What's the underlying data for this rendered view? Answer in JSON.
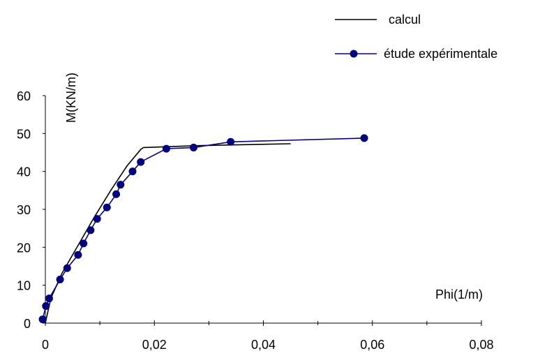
{
  "chart_data": {
    "type": "line",
    "xlabel": "Phi(1/m)",
    "ylabel": "M(KN/m)",
    "xlim": [
      0,
      0.08
    ],
    "ylim": [
      0,
      60
    ],
    "x_ticks": [
      "0",
      "0,02",
      "0,04",
      "0,06",
      "0,08"
    ],
    "y_ticks": [
      "0",
      "10",
      "20",
      "30",
      "40",
      "50",
      "60"
    ],
    "grid": false,
    "legend_position": "top-right",
    "series": [
      {
        "name": "calcul",
        "color": "#000000",
        "marker": "none",
        "x": [
          0,
          0.001,
          0.003,
          0.006,
          0.009,
          0.012,
          0.015,
          0.0175,
          0.018,
          0.022,
          0.028,
          0.035,
          0.045
        ],
        "y": [
          0,
          6.5,
          13.0,
          20.5,
          28.0,
          35.0,
          41.5,
          45.8,
          46.3,
          46.5,
          46.8,
          47.0,
          47.3
        ]
      },
      {
        "name": "étude expérimentale",
        "color": "#000080",
        "marker": "circle",
        "x": [
          -0.0005,
          0.0001,
          0.0007,
          0.0027,
          0.004,
          0.006,
          0.007,
          0.0083,
          0.0095,
          0.0113,
          0.013,
          0.0138,
          0.016,
          0.0175,
          0.0222,
          0.0272,
          0.034,
          0.0585
        ],
        "y": [
          1.0,
          4.5,
          6.5,
          11.5,
          14.5,
          18.0,
          21.0,
          24.5,
          27.5,
          30.5,
          34.0,
          36.5,
          40.0,
          42.5,
          46.0,
          46.3,
          47.8,
          48.8
        ]
      }
    ]
  }
}
